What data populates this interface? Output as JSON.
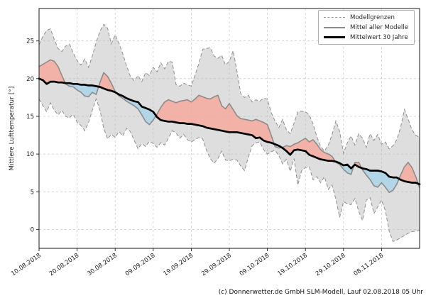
{
  "chart_data": {
    "type": "line",
    "ylabel": "Mittlere Lufttemperatur [°]",
    "footer": "(c) Donnerwetter.de GmbH SLM-Modell, Lauf 02.08.2018 05 Uhr",
    "grid": true,
    "xlim_days": [
      0,
      100
    ],
    "ylim": [
      -2.5,
      29.3
    ],
    "y_ticks": [
      0,
      5,
      10,
      15,
      20,
      25
    ],
    "x_tick_days": [
      0,
      10,
      20,
      30,
      40,
      50,
      60,
      70,
      80,
      90
    ],
    "x_tick_labels": [
      "10.08.2018",
      "20.08.2018",
      "30.08.2018",
      "09.09.2018",
      "19.09.2018",
      "29.09.2018",
      "09.10.2018",
      "19.10.2018",
      "29.10.2018",
      "08.11.2018"
    ],
    "legend": {
      "position": "upper right",
      "entries": [
        {
          "label": "Modellgrenzen",
          "style": "dashed-gray"
        },
        {
          "label": "Mittel aller Modelle",
          "style": "solid-gray"
        },
        {
          "label": "Mittelwert 30 Jahre",
          "style": "solid-black-thick"
        }
      ]
    },
    "colors": {
      "band_fill": "#bdbdbd",
      "band_border": "#8f8f8f",
      "warm_fill": "#f9a396",
      "cold_fill": "#a3d3eb",
      "model_mean_line": "#8c8c8c",
      "climate_line": "#000000",
      "grid": "#cccccc",
      "spine": "#1a1a1a"
    },
    "series": [
      {
        "name": "Modellgrenzen (oben)",
        "role": "band_upper",
        "values": [
          24.5,
          25.6,
          26.4,
          26.6,
          25.2,
          24.0,
          23.6,
          24.3,
          24.6,
          23.4,
          22.4,
          21.8,
          22.6,
          21.5,
          23.0,
          24.8,
          26.3,
          27.2,
          26.7,
          24.6,
          25.8,
          24.7,
          23.3,
          21.7,
          20.3,
          19.7,
          20.4,
          19.6,
          20.8,
          20.4,
          21.5,
          20.9,
          22.1,
          21.3,
          22.3,
          22.2,
          19.2,
          19.0,
          19.4,
          19.2,
          19.0,
          20.5,
          22.0,
          23.9,
          24.0,
          24.1,
          23.0,
          22.7,
          23.1,
          21.8,
          22.3,
          23.7,
          21.0,
          18.0,
          17.5,
          17.8,
          16.9,
          17.2,
          17.0,
          17.4,
          17.3,
          15.5,
          14.4,
          13.5,
          14.6,
          13.2,
          12.7,
          14.1,
          15.6,
          15.7,
          15.6,
          15.2,
          14.0,
          12.3,
          11.0,
          10.4,
          11.2,
          12.6,
          14.4,
          13.0,
          10.1,
          11.5,
          12.4,
          11.2,
          12.7,
          12.1,
          10.9,
          12.7,
          11.8,
          12.6,
          11.3,
          11.6,
          10.7,
          11.1,
          11.9,
          13.5,
          15.9,
          14.6,
          13.2,
          12.5,
          12.2
        ]
      },
      {
        "name": "Modellgrenzen (unten)",
        "role": "band_lower",
        "values": [
          17.3,
          16.4,
          15.6,
          16.8,
          15.8,
          15.2,
          15.8,
          15.0,
          14.8,
          15.3,
          14.2,
          13.8,
          13.1,
          14.2,
          15.8,
          17.3,
          15.8,
          13.4,
          12.0,
          12.6,
          12.2,
          13.0,
          12.4,
          13.4,
          13.0,
          11.8,
          10.7,
          11.4,
          11.0,
          11.7,
          11.4,
          10.9,
          11.5,
          11.2,
          12.1,
          13.1,
          12.8,
          12.1,
          12.6,
          11.9,
          11.6,
          11.9,
          12.2,
          12.0,
          10.5,
          9.4,
          8.8,
          9.4,
          10.4,
          9.2,
          9.1,
          9.3,
          9.2,
          8.4,
          7.8,
          9.6,
          11.1,
          11.5,
          11.6,
          10.6,
          10.0,
          10.3,
          10.5,
          9.8,
          8.7,
          9.3,
          7.7,
          9.4,
          5.9,
          7.8,
          8.2,
          8.3,
          6.6,
          7.0,
          6.2,
          7.0,
          5.3,
          5.9,
          4.0,
          1.6,
          3.7,
          3.4,
          3.3,
          4.1,
          2.4,
          1.2,
          3.9,
          4.2,
          2.1,
          3.0,
          3.9,
          2.5,
          -0.2,
          -1.6,
          -1.4,
          -1.1,
          -0.8,
          -0.5,
          -0.3,
          -0.2,
          -0.1
        ]
      },
      {
        "name": "Mittel aller Modelle",
        "role": "model_mean",
        "values": [
          21.6,
          21.9,
          22.2,
          22.5,
          22.3,
          21.6,
          20.4,
          19.3,
          19.0,
          18.9,
          18.5,
          18.2,
          17.7,
          17.6,
          18.2,
          17.9,
          19.5,
          20.8,
          20.3,
          19.4,
          18.3,
          17.7,
          17.4,
          17.0,
          16.7,
          16.4,
          16.0,
          15.2,
          14.3,
          13.9,
          14.5,
          15.3,
          16.2,
          16.9,
          17.2,
          17.0,
          16.8,
          17.0,
          17.1,
          17.2,
          16.9,
          17.3,
          17.8,
          17.6,
          17.4,
          17.3,
          17.6,
          17.8,
          16.4,
          16.0,
          16.7,
          15.9,
          15.1,
          14.7,
          14.6,
          14.5,
          14.4,
          14.6,
          14.4,
          14.2,
          13.9,
          12.5,
          11.0,
          10.8,
          10.9,
          11.1,
          11.0,
          11.3,
          11.5,
          11.8,
          12.1,
          11.6,
          11.9,
          11.3,
          10.6,
          10.2,
          10.0,
          9.7,
          8.9,
          8.6,
          8.0,
          7.5,
          7.3,
          8.9,
          8.9,
          7.9,
          7.2,
          6.6,
          5.8,
          5.6,
          6.2,
          5.6,
          4.9,
          5.2,
          6.0,
          7.2,
          8.3,
          8.9,
          8.2,
          7.0,
          5.5
        ]
      },
      {
        "name": "Mittelwert 30 Jahre",
        "role": "climate_mean",
        "values": [
          20.0,
          19.8,
          19.3,
          19.6,
          19.6,
          19.5,
          19.5,
          19.4,
          19.4,
          19.3,
          19.3,
          19.2,
          19.2,
          19.1,
          19.1,
          19.0,
          18.9,
          18.7,
          18.5,
          18.4,
          18.2,
          17.9,
          17.7,
          17.4,
          17.2,
          17.0,
          16.9,
          16.3,
          16.1,
          15.9,
          15.6,
          14.9,
          14.5,
          14.4,
          14.3,
          14.3,
          14.2,
          14.1,
          14.1,
          14.0,
          14.0,
          13.9,
          13.8,
          13.7,
          13.5,
          13.4,
          13.3,
          13.2,
          13.1,
          13.0,
          12.9,
          12.9,
          12.9,
          12.8,
          12.7,
          12.6,
          12.5,
          12.1,
          12.2,
          11.8,
          11.6,
          11.5,
          11.3,
          11.1,
          10.8,
          10.4,
          9.9,
          10.5,
          10.6,
          10.5,
          10.4,
          9.9,
          9.7,
          9.5,
          9.3,
          9.2,
          9.1,
          9.1,
          9.0,
          8.8,
          8.5,
          8.6,
          8.1,
          8.6,
          8.3,
          8.1,
          8.0,
          7.8,
          7.8,
          7.8,
          7.7,
          7.5,
          7.0,
          6.9,
          6.9,
          6.6,
          6.4,
          6.3,
          6.2,
          6.2,
          6.0
        ]
      }
    ]
  }
}
